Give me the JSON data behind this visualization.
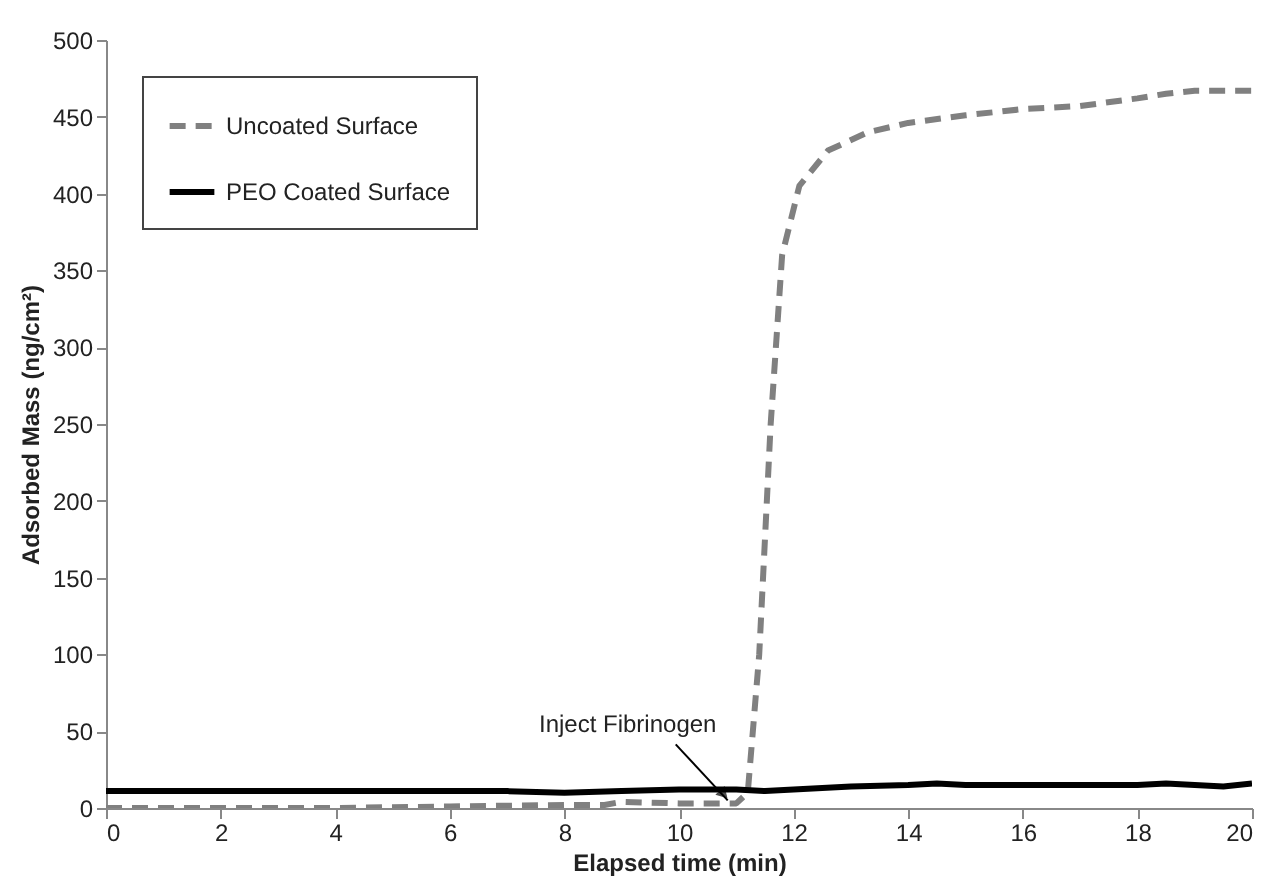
{
  "chart_data": {
    "type": "line",
    "xlabel": "Elapsed time (min)",
    "ylabel": "Adsorbed Mass (ng/cm²)",
    "xlim": [
      0,
      20
    ],
    "xticks": [
      0,
      2,
      4,
      6,
      8,
      10,
      12,
      14,
      16,
      18,
      20
    ],
    "ylim": [
      0,
      500
    ],
    "yticks": [
      0,
      50,
      100,
      150,
      200,
      250,
      300,
      350,
      400,
      450,
      500
    ],
    "grid": false,
    "legend": "top left",
    "marker": "none",
    "annotations": [
      {
        "text": "Inject Fibrinogen",
        "x": 10.85,
        "y": 5
      }
    ],
    "series": [
      {
        "name": "Uncoated Surface",
        "color": "#808080",
        "line_style": "dashed",
        "x": [
          0,
          4,
          6,
          8,
          8.7,
          9,
          10,
          11,
          11.2,
          11.4,
          11.6,
          11.8,
          12.1,
          12.6,
          13.3,
          14,
          15,
          16,
          17,
          18,
          18.5,
          19,
          20
        ],
        "values": [
          0,
          0,
          1,
          2,
          2,
          4,
          3,
          3,
          10,
          100,
          250,
          360,
          405,
          428,
          440,
          446,
          451,
          455,
          457,
          462,
          465,
          467,
          467
        ]
      },
      {
        "name": "PEO Coated Surface",
        "color": "#000000",
        "line_style": "solid",
        "x": [
          0,
          1,
          2,
          3,
          4,
          5,
          6,
          7,
          8,
          9,
          10,
          11,
          11.5,
          12,
          12.5,
          13,
          14,
          14.5,
          15,
          16,
          17,
          18,
          18.5,
          19,
          19.5,
          20
        ],
        "values": [
          11,
          11,
          11,
          11,
          11,
          11,
          11,
          11,
          10,
          11,
          12,
          12,
          11,
          12,
          13,
          14,
          15,
          16,
          15,
          15,
          15,
          15,
          16,
          15,
          14,
          16
        ]
      }
    ]
  }
}
